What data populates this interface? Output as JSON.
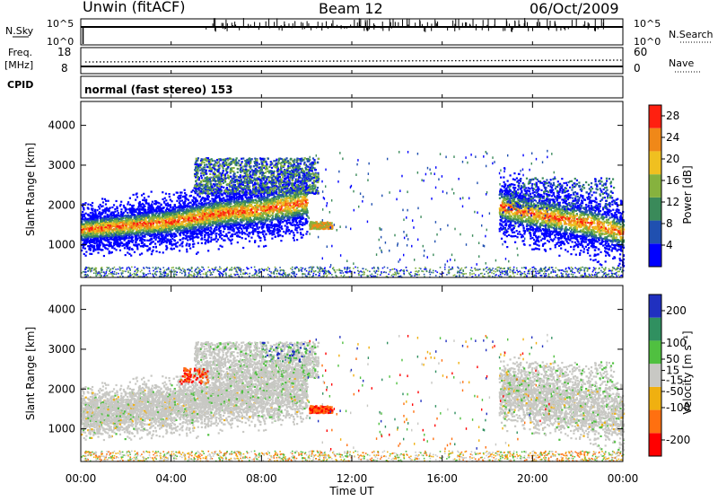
{
  "header": {
    "station": "Unwin (fitACF)",
    "beam": "Beam 12",
    "date": "06/Oct/2009"
  },
  "top_panels": {
    "nsky_label": "N.Sky",
    "nsky_ticks": [
      "10^5",
      "10^0"
    ],
    "nsearch_label": "N.Search",
    "nsearch_ticks": [
      "10^5",
      "10^0"
    ],
    "freq_label_1": "Freq.",
    "freq_label_2": "[MHz]",
    "freq_ticks": [
      "18",
      "8"
    ],
    "nave_label": "Nave",
    "nave_ticks": [
      "60",
      "0"
    ],
    "cpid_label": "CPID",
    "cpid_text": "normal (fast stereo) 153"
  },
  "x_axis": {
    "label": "Time UT",
    "ticks": [
      "00:00",
      "04:00",
      "08:00",
      "12:00",
      "16:00",
      "20:00",
      "00:00"
    ]
  },
  "colors": {
    "power": [
      "#0000ff",
      "#2050b0",
      "#3a8a5a",
      "#86b23e",
      "#f0c020",
      "#f08818",
      "#ff2010"
    ],
    "velocity": [
      "#ff0000",
      "#ff7010",
      "#f0b010",
      "#c8c8c4",
      "#50c040",
      "#309060",
      "#2030c0"
    ]
  },
  "chart_data": [
    {
      "type": "heatmap",
      "title": "Power",
      "ylabel": "Slant Range [km]",
      "xlim": [
        0,
        24
      ],
      "ylim": [
        180,
        4600
      ],
      "yticks": [
        1000,
        2000,
        3000,
        4000
      ],
      "colorbar": {
        "label": "Power [dB]",
        "ticks": [
          4,
          8,
          12,
          16,
          20,
          24,
          28
        ],
        "range": [
          0,
          30
        ]
      },
      "bands": [
        {
          "name": "morning-band",
          "x": [
            0,
            1,
            2,
            3,
            4,
            5,
            6,
            7,
            8,
            9,
            10
          ],
          "y": [
            1400,
            1450,
            1500,
            1550,
            1600,
            1700,
            1800,
            1850,
            1900,
            2000,
            2100
          ]
        },
        {
          "name": "evening-band",
          "x": [
            18.5,
            19.5,
            20.5,
            21.5,
            22.5,
            23.5,
            24
          ],
          "y": [
            2000,
            1850,
            1750,
            1650,
            1550,
            1400,
            1300
          ]
        }
      ]
    },
    {
      "type": "heatmap",
      "title": "Velocity",
      "ylabel": "Slant Range [km]",
      "xlim": [
        0,
        24
      ],
      "ylim": [
        180,
        4600
      ],
      "yticks": [
        1000,
        2000,
        3000,
        4000
      ],
      "colorbar": {
        "label": "Velocity [m s⁻¹]",
        "ticks": [
          -200,
          -100,
          -50,
          -15,
          15,
          50,
          100,
          200
        ],
        "range": [
          -250,
          250
        ]
      }
    }
  ]
}
